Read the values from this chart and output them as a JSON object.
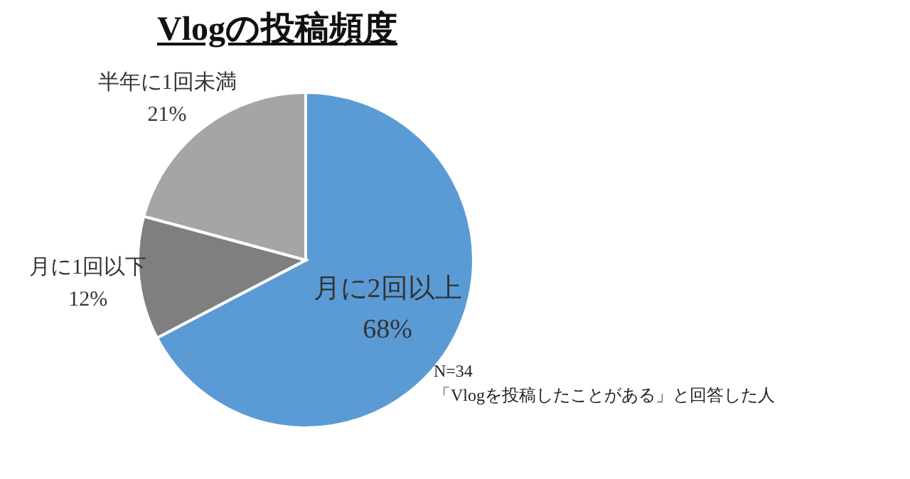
{
  "chart_data": {
    "type": "pie",
    "title": "Vlogの投稿頻度",
    "categories": [
      "月に2回以上",
      "月に1回以下",
      "半年に1回未満"
    ],
    "values": [
      68,
      12,
      21
    ],
    "value_labels": [
      "68%",
      "12%",
      "21%"
    ],
    "colors": [
      "#5b9bd5",
      "#7f7f7f",
      "#a5a5a5"
    ],
    "annotations": [
      "N=34",
      "「Vlogを投稿したことがある」と回答した人"
    ]
  }
}
